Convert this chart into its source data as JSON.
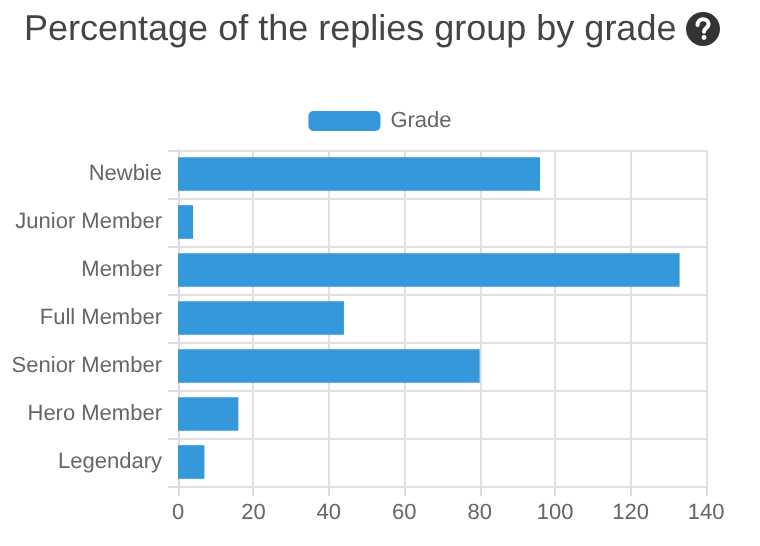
{
  "chart_data": {
    "type": "bar",
    "orientation": "horizontal",
    "title": "Percentage of the replies group by grade",
    "categories": [
      "Newbie",
      "Junior Member",
      "Member",
      "Full Member",
      "Senior Member",
      "Hero Member",
      "Legendary"
    ],
    "series": [
      {
        "name": "Grade",
        "color": "#3498db",
        "values": [
          96,
          4,
          133,
          44,
          80,
          16,
          7
        ]
      }
    ],
    "xlim": [
      0,
      140
    ],
    "xticks": [
      0,
      20,
      40,
      60,
      80,
      100,
      120,
      140
    ],
    "grid": true,
    "legend": "top"
  }
}
